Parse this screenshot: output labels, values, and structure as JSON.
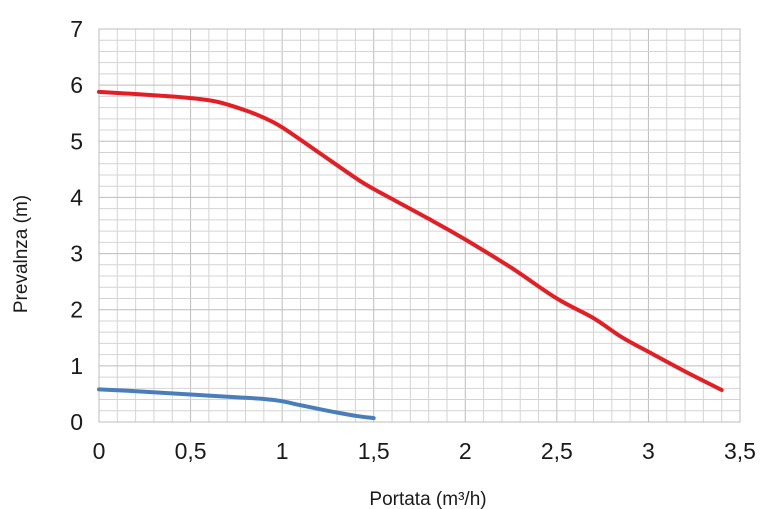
{
  "chart_data": {
    "type": "line",
    "xlabel": "Portata (m³/h)",
    "ylabel": "Prevalnza (m)",
    "xlim": [
      0,
      3.5
    ],
    "ylim": [
      0,
      7
    ],
    "x_ticks": [
      {
        "value": 0,
        "label": "0"
      },
      {
        "value": 0.5,
        "label": "0,5"
      },
      {
        "value": 1,
        "label": "1"
      },
      {
        "value": 1.5,
        "label": "1,5"
      },
      {
        "value": 2,
        "label": "2"
      },
      {
        "value": 2.5,
        "label": "2,5"
      },
      {
        "value": 3,
        "label": "3"
      },
      {
        "value": 3.5,
        "label": "3,5"
      }
    ],
    "y_ticks": [
      {
        "value": 0,
        "label": "0"
      },
      {
        "value": 1,
        "label": "1"
      },
      {
        "value": 2,
        "label": "2"
      },
      {
        "value": 3,
        "label": "3"
      },
      {
        "value": 4,
        "label": "4"
      },
      {
        "value": 5,
        "label": "5"
      },
      {
        "value": 6,
        "label": "6"
      },
      {
        "value": 7,
        "label": "7"
      }
    ],
    "grid": true,
    "minor_grid": {
      "x_step": 0.1,
      "y_step": 0.2
    },
    "legend": "none",
    "series": [
      {
        "color": "#e31e24",
        "points": [
          [
            0,
            5.88
          ],
          [
            0.3,
            5.82
          ],
          [
            0.5,
            5.77
          ],
          [
            0.65,
            5.7
          ],
          [
            0.8,
            5.55
          ],
          [
            0.9,
            5.42
          ],
          [
            1.0,
            5.25
          ],
          [
            1.2,
            4.8
          ],
          [
            1.4,
            4.35
          ],
          [
            1.5,
            4.15
          ],
          [
            1.8,
            3.62
          ],
          [
            2.0,
            3.25
          ],
          [
            2.25,
            2.75
          ],
          [
            2.5,
            2.2
          ],
          [
            2.7,
            1.85
          ],
          [
            2.85,
            1.52
          ],
          [
            3.0,
            1.25
          ],
          [
            3.2,
            0.9
          ],
          [
            3.4,
            0.57
          ]
        ]
      },
      {
        "color": "#4a7ebb",
        "points": [
          [
            0,
            0.58
          ],
          [
            0.25,
            0.54
          ],
          [
            0.5,
            0.49
          ],
          [
            0.75,
            0.44
          ],
          [
            0.9,
            0.41
          ],
          [
            1.0,
            0.37
          ],
          [
            1.1,
            0.3
          ],
          [
            1.25,
            0.2
          ],
          [
            1.4,
            0.11
          ],
          [
            1.5,
            0.07
          ]
        ]
      }
    ]
  }
}
